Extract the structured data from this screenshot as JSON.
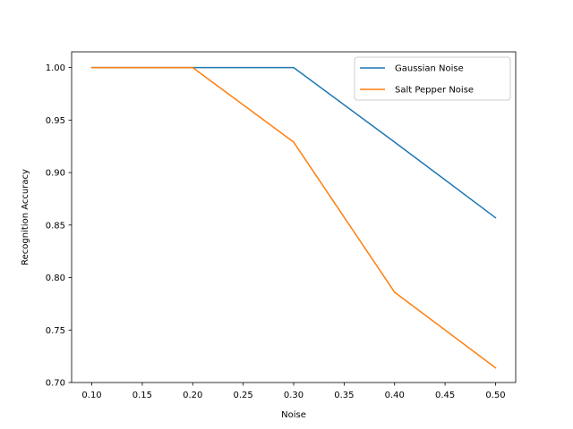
{
  "chart_data": {
    "type": "line",
    "xlabel": "Noise",
    "ylabel": "Recognition Accuracy",
    "xlim": [
      0.08,
      0.52
    ],
    "ylim": [
      0.7,
      1.015
    ],
    "xticks": [
      "0.10",
      "0.15",
      "0.20",
      "0.25",
      "0.30",
      "0.35",
      "0.40",
      "0.45",
      "0.50"
    ],
    "yticks": [
      "0.70",
      "0.75",
      "0.80",
      "0.85",
      "0.90",
      "0.95",
      "1.00"
    ],
    "grid": false,
    "legend_position": "top-right",
    "x": [
      0.1,
      0.2,
      0.3,
      0.4,
      0.5
    ],
    "series": [
      {
        "name": "Gaussian Noise",
        "color": "#1f77b4",
        "values": [
          1.0,
          1.0,
          1.0,
          0.929,
          0.857
        ]
      },
      {
        "name": "Salt Pepper Noise",
        "color": "#ff7f0e",
        "values": [
          1.0,
          1.0,
          0.929,
          0.786,
          0.714
        ]
      }
    ]
  }
}
